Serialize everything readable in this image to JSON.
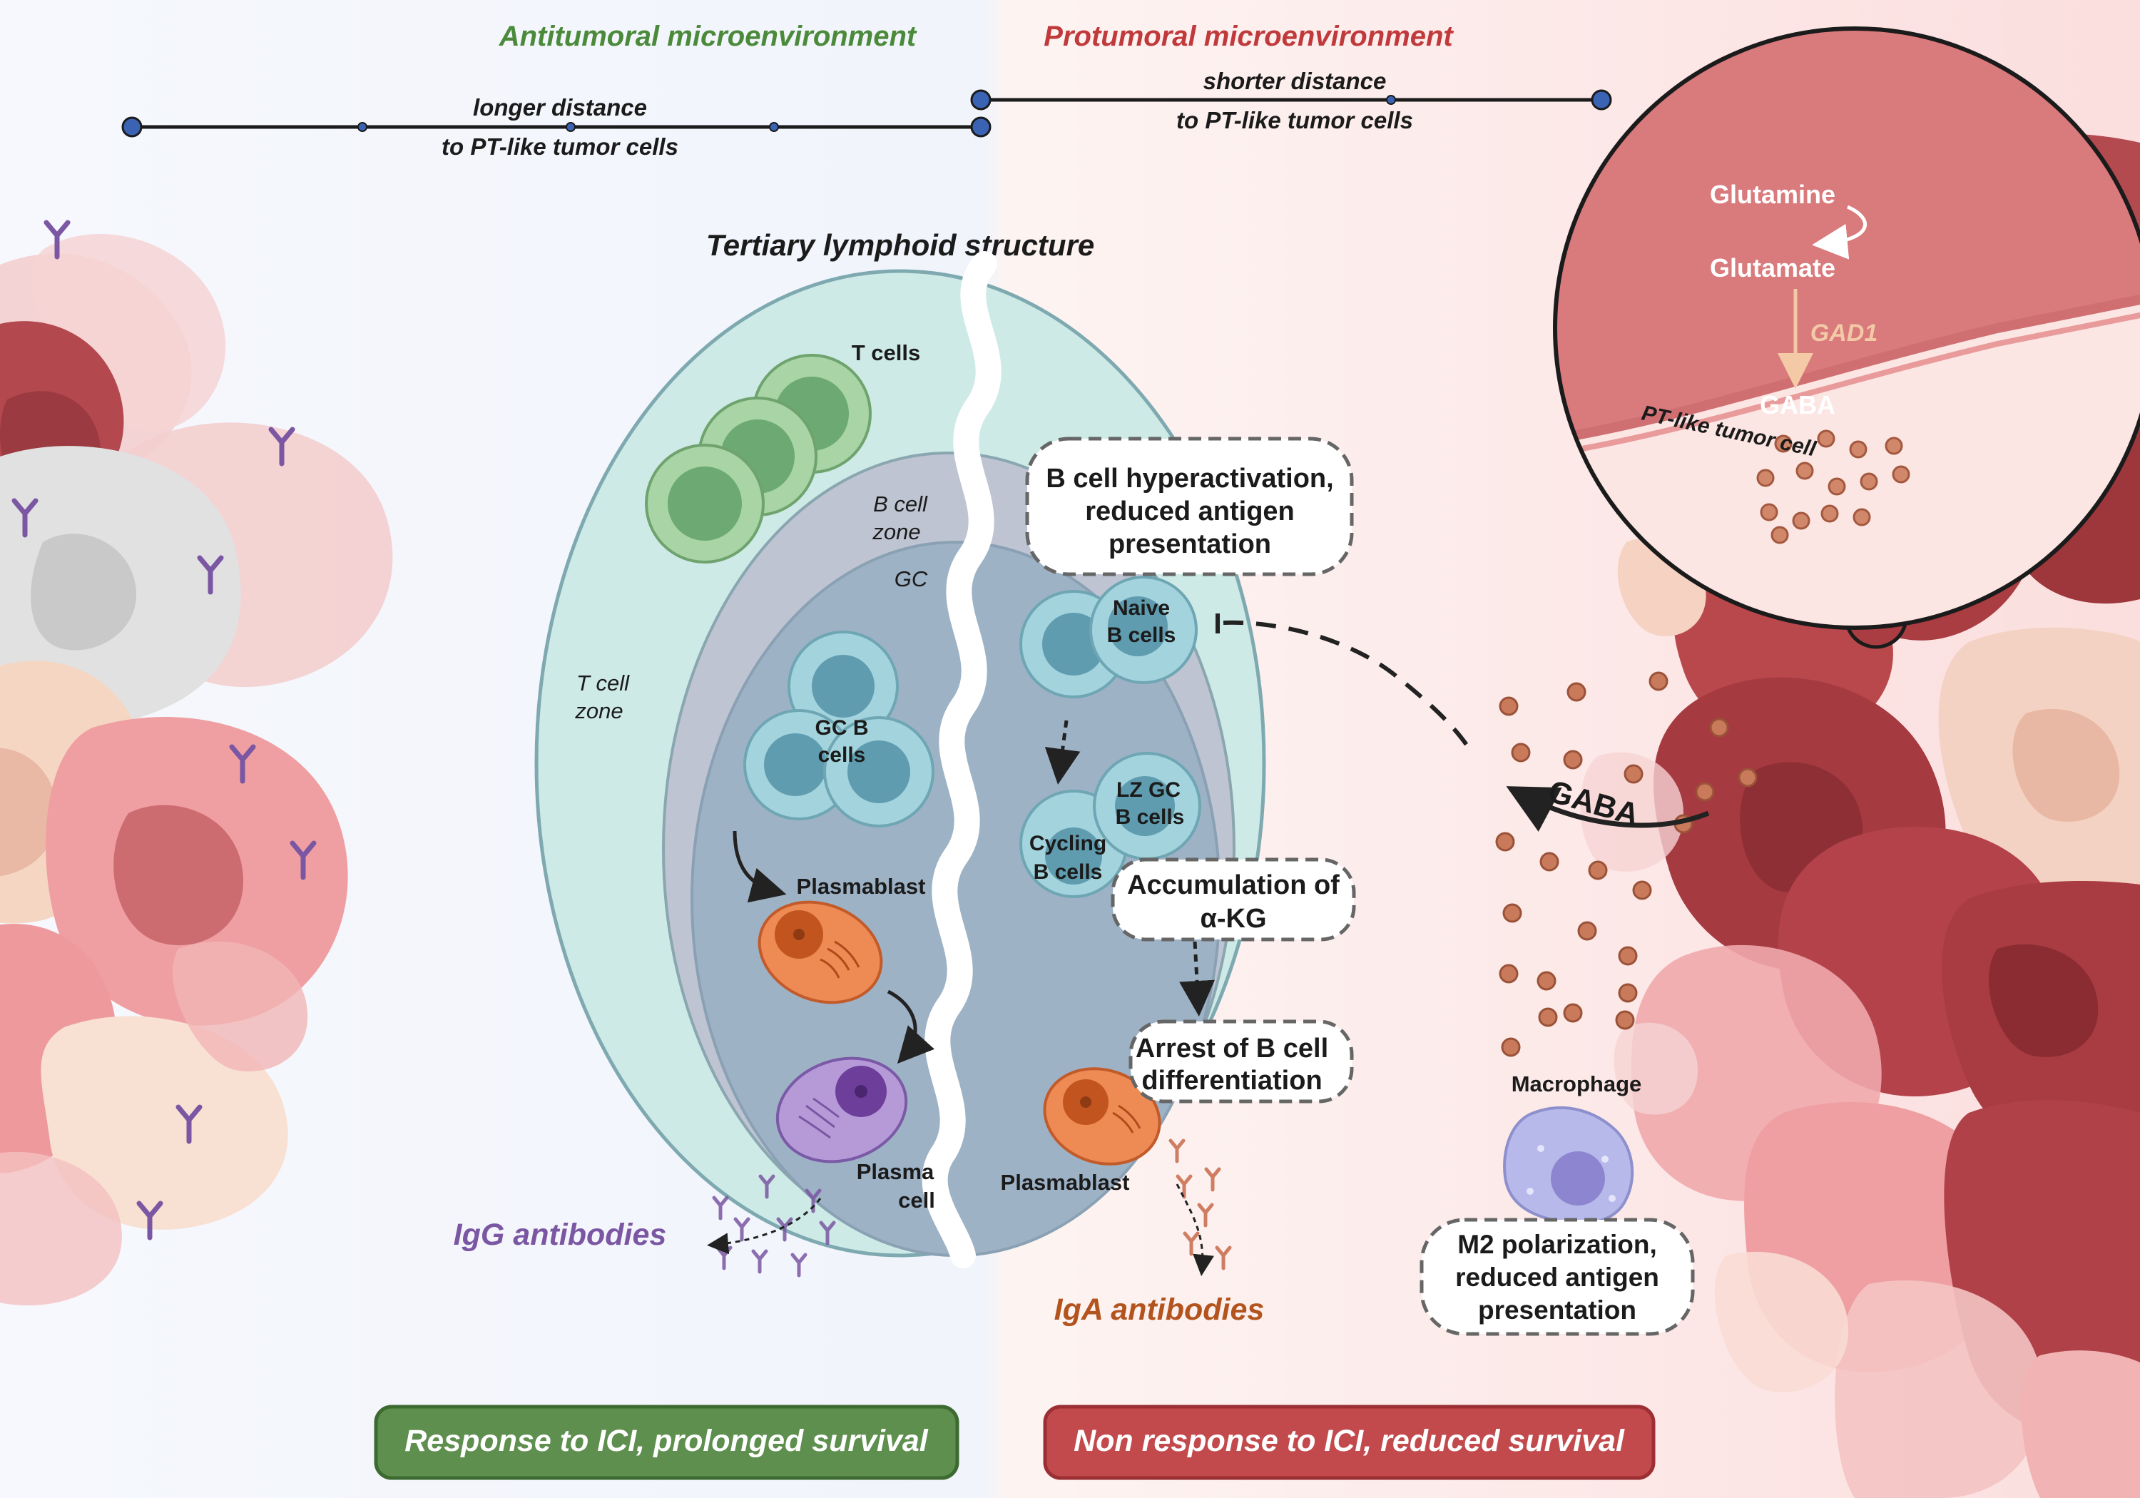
{
  "header": {
    "antitumoral_title": "Antitumoral microenvironment",
    "protumoral_title": "Protumoral microenvironment",
    "longer_distance_line1": "longer distance",
    "longer_distance_line2": "to PT-like tumor cells",
    "shorter_distance_line1": "shorter distance",
    "shorter_distance_line2": "to PT-like tumor cells"
  },
  "tls": {
    "title": "Tertiary lymphoid structure",
    "t_cells": "T cells",
    "t_cell_zone_line1": "T cell",
    "t_cell_zone_line2": "zone",
    "b_cell_zone_line1": "B cell",
    "b_cell_zone_line2": "zone",
    "gc": "GC",
    "gc_b_cells_line1": "GC B",
    "gc_b_cells_line2": "cells",
    "plasmablast_left": "Plasmablast",
    "plasma_cell_line1": "Plasma",
    "plasma_cell_line2": "cell",
    "naive_line1": "Naive",
    "naive_line2": "B cells",
    "lz_gc_line1": "LZ GC",
    "lz_gc_line2": "B cells",
    "cycling_line1": "Cycling",
    "cycling_line2": "B cells",
    "plasmablast_right": "Plasmablast"
  },
  "callouts": {
    "hyperactivation_line1": "B cell hyperactivation,",
    "hyperactivation_line2": "reduced antigen",
    "hyperactivation_line3": "presentation",
    "akg_line1": "Accumulation of",
    "akg_line2": "α-KG",
    "arrest_line1": "Arrest of B cell",
    "arrest_line2": "differentiation",
    "m2_line1": "M2 polarization,",
    "m2_line2": "reduced antigen",
    "m2_line3": "presentation"
  },
  "antibodies": {
    "igg": "IgG antibodies",
    "iga": "IgA antibodies"
  },
  "inset": {
    "glutamine": "Glutamine",
    "glutamate": "Glutamate",
    "gad1": "GAD1",
    "gaba": "GABA",
    "pt_like": "PT-like tumor cell"
  },
  "gaba_arrow_label": "GABA",
  "macrophage": "Macrophage",
  "outcomes": {
    "response": "Response to ICI, prolonged survival",
    "non_response": "Non response to ICI, reduced survival"
  },
  "colors": {
    "antitumoral_green": "#4a8a3a",
    "protumoral_red": "#c0393b",
    "igg_purple": "#7b57a3",
    "iga_orange": "#b3541e",
    "response_box": "#5e8f4e",
    "non_response_box": "#c24a4d"
  }
}
